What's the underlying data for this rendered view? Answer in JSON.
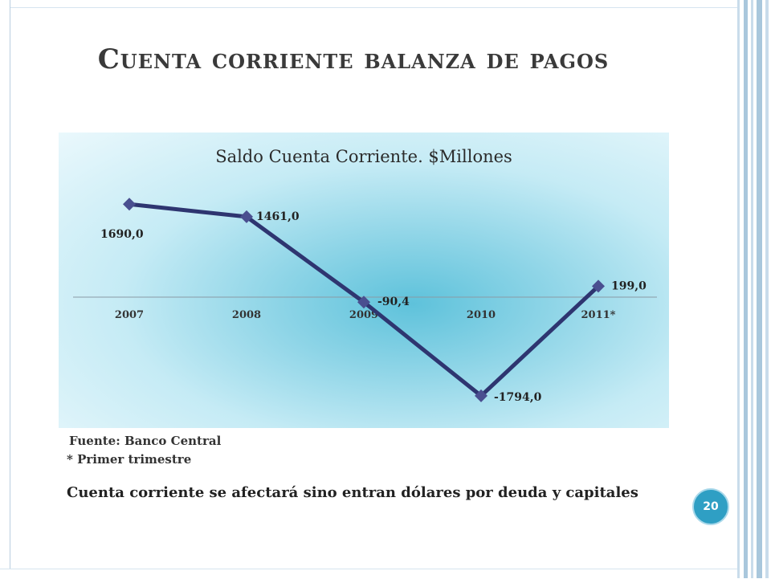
{
  "slide": {
    "title": "Cuenta corriente balanza de pagos",
    "page_number": "20",
    "source_note": "Fuente: Banco Central",
    "footnote": "* Primer trimestre",
    "body_text": "Cuenta corriente se afectará sino entran dólares por deuda y capitales"
  },
  "colors": {
    "line": "#2e3570",
    "marker": "#4a4f90",
    "page_badge": "#2f9fc4",
    "side_stripes": "#a9c7dc"
  },
  "chart_data": {
    "type": "line",
    "title": "Saldo Cuenta Corriente. $Millones",
    "categories": [
      "2007",
      "2008",
      "2009",
      "2010",
      "2011*"
    ],
    "series": [
      {
        "values": [
          1690.0,
          1461.0,
          -90.4,
          -1794.0,
          199.0
        ]
      }
    ],
    "data_labels": [
      "1690,0",
      "1461,0",
      "-90,4",
      "-1794,0",
      "199,0"
    ],
    "ylim": [
      -2000,
      2000
    ],
    "grid": false,
    "legend": "none"
  }
}
